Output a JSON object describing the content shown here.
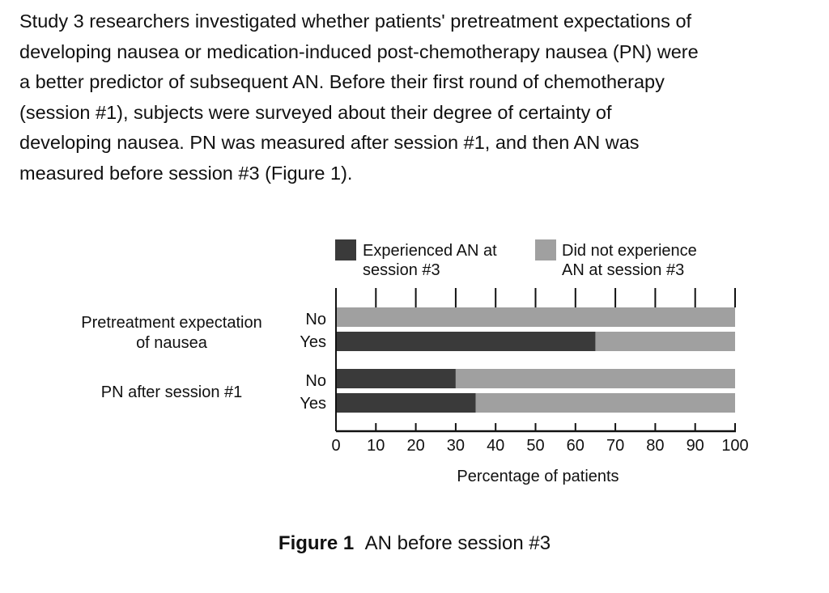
{
  "passage": {
    "lines": [
      "Study 3 researchers investigated whether patients' pretreatment expectations of",
      "developing nausea or medication-induced post-chemotherapy nausea (PN) were",
      "a better predictor of subsequent AN.  Before their first round of chemotherapy",
      "(session #1), subjects were surveyed about their degree of certainty of",
      "developing nausea.  PN was measured after session #1, and then AN was",
      "measured before session #3 (Figure 1)."
    ]
  },
  "figure": {
    "label": "Figure 1",
    "title": "AN before session #3"
  },
  "chart_data": {
    "type": "bar",
    "orientation": "horizontal",
    "stacked": true,
    "xlabel": "Percentage of patients",
    "xlim": [
      0,
      100
    ],
    "xticks": [
      "0",
      "10",
      "20",
      "30",
      "40",
      "50",
      "60",
      "70",
      "80",
      "90",
      "100"
    ],
    "legend": {
      "placement": "top",
      "entries": [
        {
          "lines": [
            "Experienced AN at",
            "session #3"
          ],
          "color": "#3a3a3a"
        },
        {
          "lines": [
            "Did not experience",
            "AN at session #3"
          ],
          "color": "#a0a0a0"
        }
      ]
    },
    "groups": [
      {
        "label_lines": [
          "Pretreatment expectation",
          "of nausea"
        ],
        "rows": [
          "No",
          "Yes"
        ]
      },
      {
        "label_lines": [
          "PN after session #1"
        ],
        "rows": [
          "No",
          "Yes"
        ]
      }
    ],
    "series": [
      {
        "name": "Experienced AN at session #3",
        "values": [
          0,
          65,
          30,
          35
        ]
      },
      {
        "name": "Did not experience AN at session #3",
        "values": [
          100,
          35,
          70,
          65
        ]
      }
    ],
    "colors": {
      "experienced": "#3a3a3a",
      "not_experienced": "#a0a0a0"
    }
  }
}
